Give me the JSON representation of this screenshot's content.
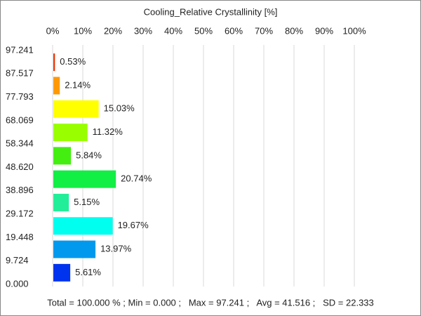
{
  "chart_data": {
    "type": "histogram",
    "orientation": "horizontal",
    "title": "Cooling_Relative Crystallinity [%]",
    "bins": [
      {
        "value": 0,
        "label": "0.000"
      },
      9.724,
      19.448,
      29.172,
      38.896,
      {
        "value": 48.62,
        "label": "48.620"
      },
      58.344,
      68.069,
      77.793,
      87.517,
      97.241
    ],
    "values": [
      5.61,
      13.97,
      19.67,
      5.15,
      20.74,
      5.84,
      11.32,
      15.03,
      2.14,
      0.53
    ],
    "value_labels": [
      "5.61%",
      "13.97%",
      "19.67%",
      "5.15%",
      "20.74%",
      "5.84%",
      "11.32%",
      "15.03%",
      "2.14%",
      "0.53%"
    ],
    "colors": [
      "#0033ee",
      "#0099ee",
      "#00ffee",
      "#22ee99",
      "#11ee44",
      "#44ee11",
      "#99ff00",
      "#ffff00",
      "#ff9900",
      "#ee3300"
    ],
    "xlim": [
      0,
      100
    ],
    "xticks": [
      {
        "value": 0,
        "label": "0%"
      },
      {
        "value": 10,
        "label": "10%"
      },
      {
        "value": 20,
        "label": "20%"
      },
      {
        "value": 30,
        "label": "30%"
      },
      {
        "value": 40,
        "label": "40%"
      },
      {
        "value": 50,
        "label": "50%"
      },
      {
        "value": 60,
        "label": "60%"
      },
      {
        "value": 70,
        "label": "70%"
      },
      {
        "value": 80,
        "label": "80%"
      },
      {
        "value": 90,
        "label": "90%"
      },
      {
        "value": 100,
        "label": "100%"
      }
    ],
    "ylim": [
      0,
      97.241
    ],
    "grid": true,
    "annotation": "Total = 100.000 % ; Min = 0.000 ;   Max = 97.241 ;   Avg = 41.516 ;   SD = 22.333"
  }
}
